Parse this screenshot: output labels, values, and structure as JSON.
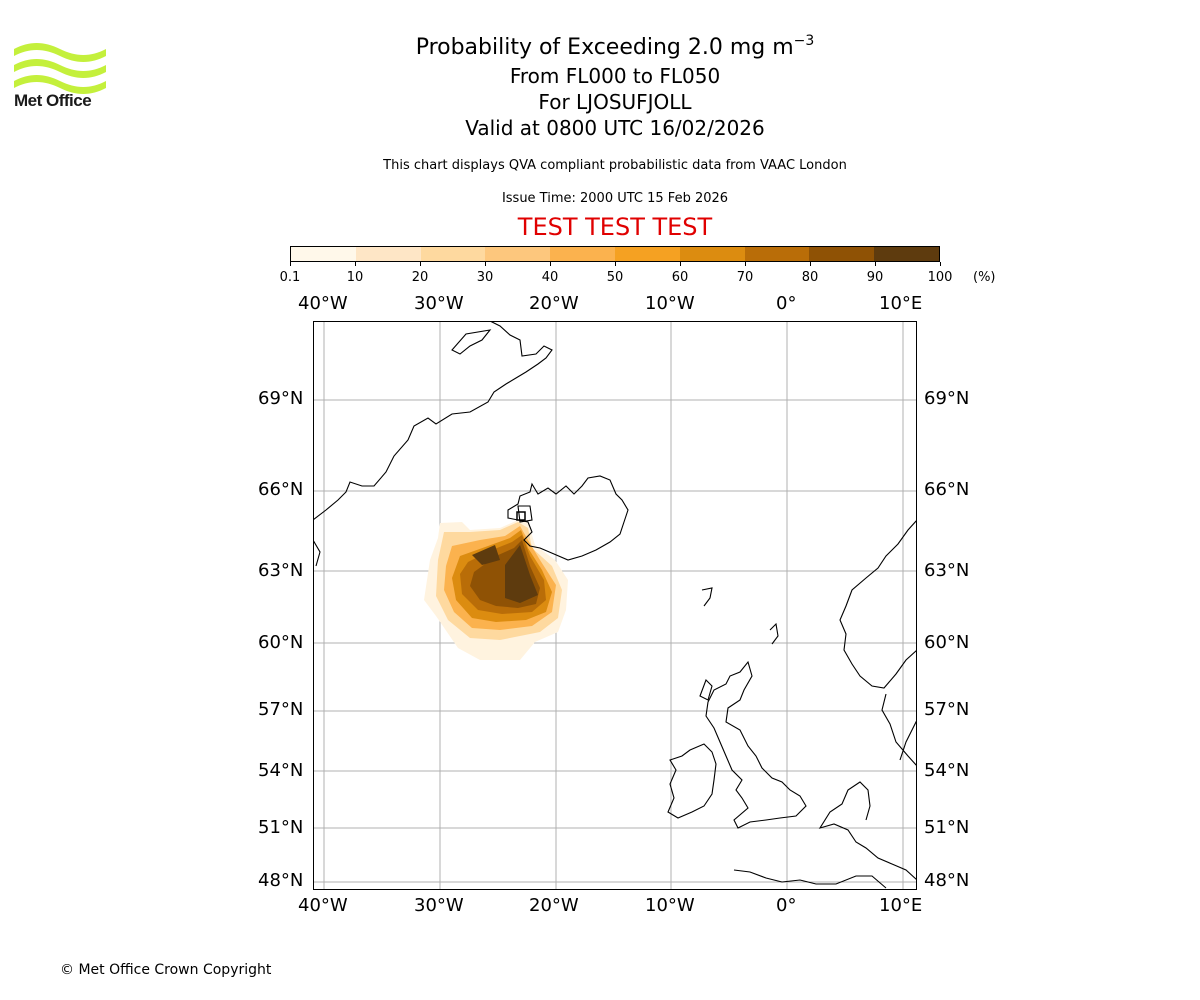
{
  "header": {
    "logo_text": "Met Office",
    "title_main": "Probability of Exceeding 2.0 mg m",
    "title_exponent": "−3",
    "title_levels": "From FL000 to FL050",
    "title_location": "For LJOSUFJOLL",
    "title_valid": "Valid at 0800 UTC 16/02/2026",
    "subtitle": "This chart displays QVA compliant probabilistic data from VAAC London",
    "issue_time": "Issue Time: 2000 UTC 15 Feb 2026",
    "test_banner": "TEST TEST TEST"
  },
  "colorbar": {
    "ticks": [
      "0.1",
      "10",
      "20",
      "30",
      "40",
      "50",
      "60",
      "70",
      "80",
      "90",
      "100"
    ],
    "unit": "(%)",
    "colors": [
      "#fff8ea",
      "#fee6c6",
      "#fed99f",
      "#fdc77d",
      "#fbb24e",
      "#f5a122",
      "#dc8c10",
      "#b96d08",
      "#8f5205",
      "#5e3b0e"
    ]
  },
  "map": {
    "lon_labels": [
      "40°W",
      "30°W",
      "20°W",
      "10°W",
      "0°",
      "10°E"
    ],
    "lat_labels": [
      "69°N",
      "66°N",
      "63°N",
      "60°N",
      "57°N",
      "54°N",
      "51°N",
      "48°N"
    ]
  },
  "chart_data": {
    "type": "heatmap",
    "title": "Probability of Exceeding 2.0 mg m−3",
    "variable": "probability (%)",
    "source_location": "LJOSUFJOLL",
    "longitude_ticks": [
      -40,
      -30,
      -20,
      -10,
      0,
      10
    ],
    "latitude_ticks": [
      69,
      66,
      63,
      60,
      57,
      54,
      51,
      48
    ],
    "color_levels": [
      0.1,
      10,
      20,
      30,
      40,
      50,
      60,
      70,
      80,
      90,
      100
    ],
    "plume_region": {
      "lon_range": [
        -32,
        -20
      ],
      "lat_range": [
        59.5,
        65
      ],
      "max_probability_range": [
        90,
        100
      ]
    }
  },
  "footer": {
    "copyright": "© Met Office Crown Copyright"
  }
}
